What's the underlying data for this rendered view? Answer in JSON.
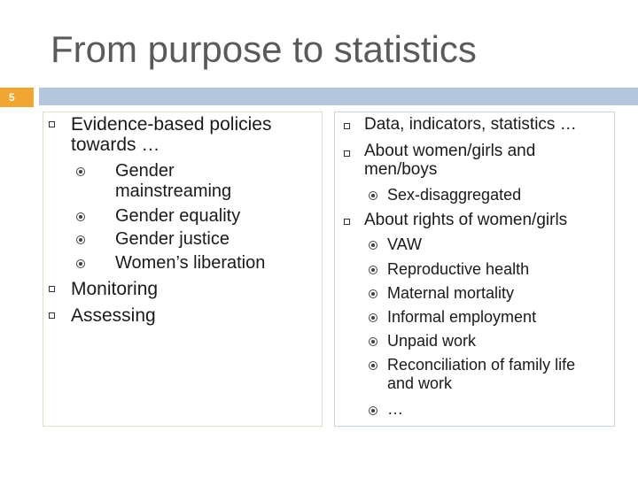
{
  "slide": {
    "title": "From purpose to statistics",
    "number": "5"
  },
  "left": {
    "items": [
      {
        "label_line1": "Evidence-based policies",
        "label_line2": "towards …"
      },
      {
        "label": "Monitoring"
      },
      {
        "label": "Assessing"
      }
    ],
    "subitems": [
      {
        "line1": "Gender",
        "line2": "mainstreaming"
      },
      {
        "label": "Gender equality"
      },
      {
        "label": "Gender justice"
      },
      {
        "label": "Women’s liberation"
      }
    ]
  },
  "right": {
    "items": [
      {
        "label": "Data, indicators, statistics …"
      },
      {
        "line1": "About women/girls and",
        "line2": "men/boys"
      },
      {
        "label": "About rights of women/girls"
      }
    ],
    "subitems_men": [
      {
        "label": "Sex-disaggregated"
      }
    ],
    "subitems_rights": [
      {
        "label": "VAW"
      },
      {
        "label": "Reproductive health"
      },
      {
        "label": "Maternal mortality"
      },
      {
        "label": "Informal employment"
      },
      {
        "label": "Unpaid work"
      },
      {
        "line1": "Reconciliation of family life",
        "line2": "and work"
      },
      {
        "label": "…"
      }
    ]
  }
}
